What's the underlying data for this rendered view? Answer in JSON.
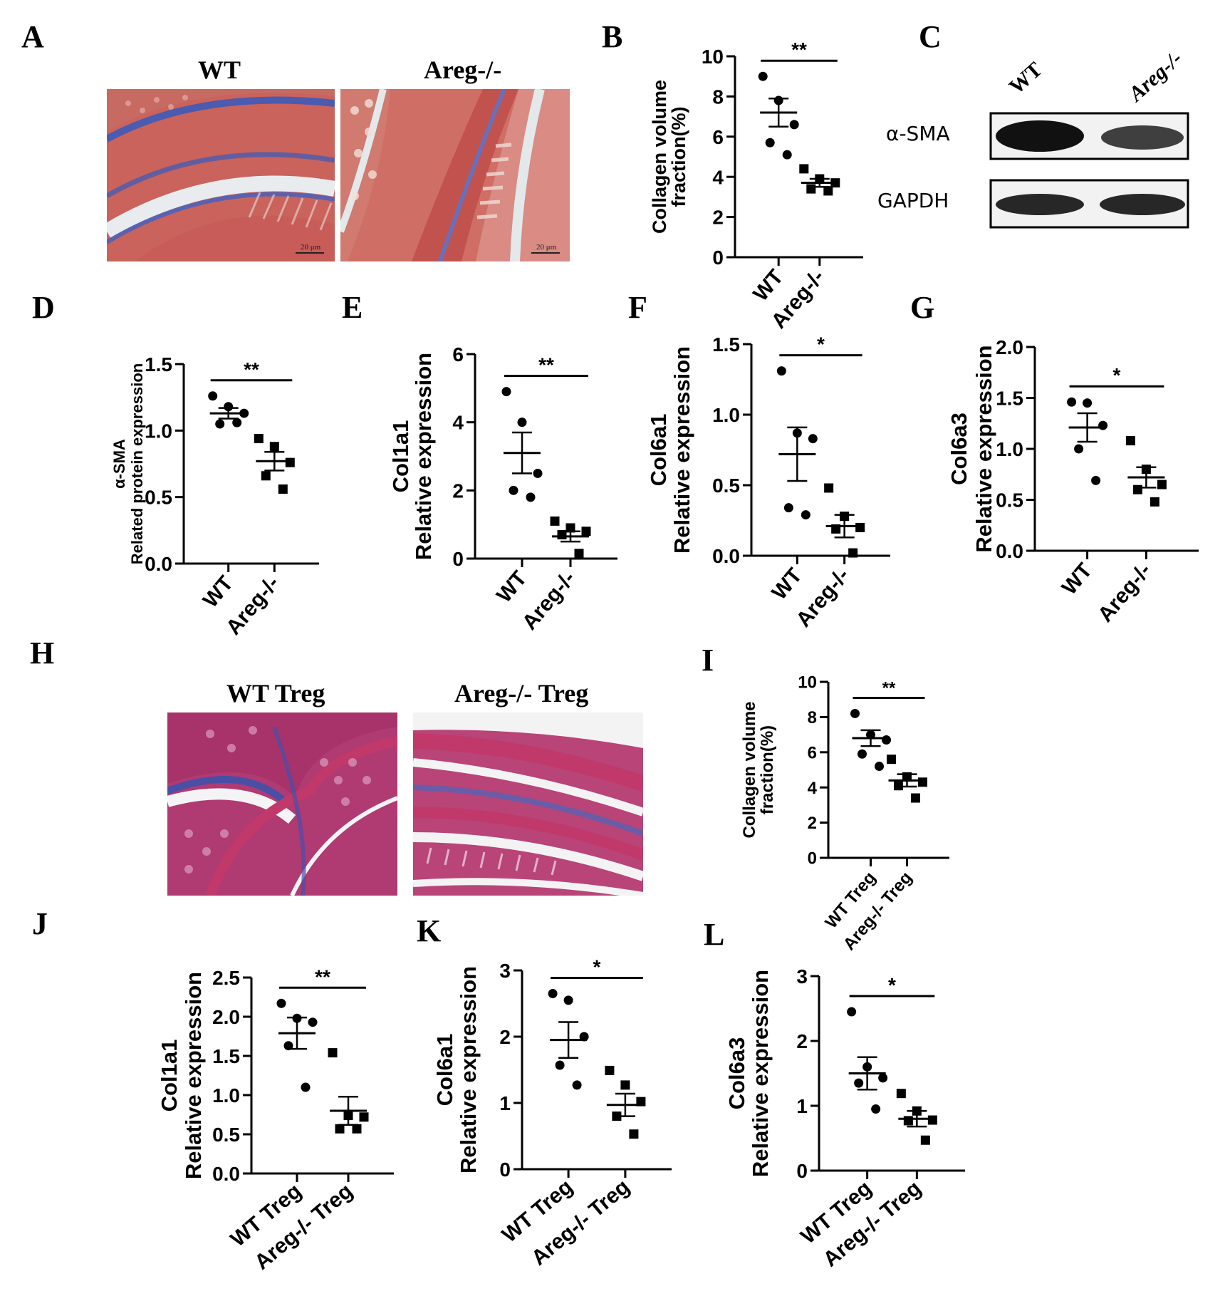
{
  "panels": {
    "A": "A",
    "B": "B",
    "C": "C",
    "D": "D",
    "E": "E",
    "F": "F",
    "G": "G",
    "H": "H",
    "I": "I",
    "J": "J",
    "K": "K",
    "L": "L"
  },
  "panel_a": {
    "left_title": "WT",
    "right_title": "Areg-/-",
    "scale_text": "20 μm"
  },
  "panel_c": {
    "col_wt": "WT",
    "col_ko": "Areg-/-",
    "row1": "α-SMA",
    "row2": "GAPDH",
    "band_intensity": {
      "alpha_sma": [
        1.0,
        0.8
      ],
      "gapdh": [
        0.9,
        0.9
      ]
    }
  },
  "panel_h": {
    "left_title": "WT Treg",
    "right_title": "Areg-/- Treg"
  },
  "colors": {
    "ink": "#000000",
    "tissue_red": "#c45a52",
    "collagen_blue": "#4a5bb0",
    "tissue_magenta": "#a8336a"
  },
  "chart_data": [
    {
      "panel": "B",
      "type": "scatter",
      "ylabel": [
        "Collagen volume",
        "fraction(%)"
      ],
      "categories": [
        "WT",
        "Areg-/-"
      ],
      "yticks": [
        "0",
        "2",
        "4",
        "6",
        "8",
        "10"
      ],
      "ylim": [
        0,
        10
      ],
      "series": [
        {
          "values": [
            9.0,
            7.8,
            6.6,
            5.7,
            5.1
          ],
          "mean": 7.2,
          "sem": 0.7
        },
        {
          "values": [
            4.4,
            3.9,
            3.7,
            3.4,
            3.3
          ],
          "mean": 3.7,
          "sem": 0.2
        }
      ],
      "significance": "**"
    },
    {
      "panel": "D",
      "type": "scatter",
      "ylabel": [
        "α-SMA",
        "Related protein expression"
      ],
      "categories": [
        "WT",
        "Areg-/-"
      ],
      "yticks": [
        "0.0",
        "0.5",
        "1.0",
        "1.5"
      ],
      "ylim": [
        0,
        1.5
      ],
      "series": [
        {
          "values": [
            1.26,
            1.18,
            1.13,
            1.05,
            1.06
          ],
          "mean": 1.13,
          "sem": 0.04
        },
        {
          "values": [
            0.94,
            0.88,
            0.76,
            0.66,
            0.56
          ],
          "mean": 0.77,
          "sem": 0.07
        }
      ],
      "significance": "**"
    },
    {
      "panel": "E",
      "type": "scatter",
      "ylabel": [
        "Col1a1",
        "Relative expression"
      ],
      "categories": [
        "WT",
        "Areg-/-"
      ],
      "yticks": [
        "0",
        "2",
        "4",
        "6"
      ],
      "ylim": [
        0,
        6
      ],
      "series": [
        {
          "values": [
            4.9,
            4.0,
            2.5,
            2.0,
            1.8
          ],
          "mean": 3.1,
          "sem": 0.6
        },
        {
          "values": [
            1.1,
            0.9,
            0.8,
            0.7,
            0.15
          ],
          "mean": 0.65,
          "sem": 0.15
        }
      ],
      "significance": "**"
    },
    {
      "panel": "F",
      "type": "scatter",
      "ylabel": [
        "Col6a1",
        "Relative expression"
      ],
      "categories": [
        "WT",
        "Areg-/-"
      ],
      "yticks": [
        "0.0",
        "0.5",
        "1.0",
        "1.5"
      ],
      "ylim": [
        0,
        1.5
      ],
      "series": [
        {
          "values": [
            1.31,
            0.87,
            0.83,
            0.34,
            0.29
          ],
          "mean": 0.72,
          "sem": 0.19
        },
        {
          "values": [
            0.48,
            0.28,
            0.2,
            0.19,
            0.02
          ],
          "mean": 0.21,
          "sem": 0.08
        }
      ],
      "significance": "*"
    },
    {
      "panel": "G",
      "type": "scatter",
      "ylabel": [
        "Col6a3",
        "Relative expression"
      ],
      "categories": [
        "WT",
        "Areg-/-"
      ],
      "yticks": [
        "0.0",
        "0.5",
        "1.0",
        "1.5",
        "2.0"
      ],
      "ylim": [
        0,
        2.0
      ],
      "series": [
        {
          "values": [
            1.46,
            1.45,
            1.23,
            1.0,
            0.69
          ],
          "mean": 1.21,
          "sem": 0.14
        },
        {
          "values": [
            1.08,
            0.8,
            0.65,
            0.6,
            0.48
          ],
          "mean": 0.72,
          "sem": 0.1
        }
      ],
      "significance": "*"
    },
    {
      "panel": "I",
      "type": "scatter",
      "ylabel": [
        "Collagen volume",
        "fraction(%)"
      ],
      "categories": [
        "WT Treg",
        "Areg-/- Treg"
      ],
      "yticks": [
        "0",
        "2",
        "4",
        "6",
        "8",
        "10"
      ],
      "ylim": [
        0,
        10
      ],
      "series": [
        {
          "values": [
            8.2,
            7.0,
            6.7,
            5.9,
            5.2
          ],
          "mean": 6.8,
          "sem": 0.45
        },
        {
          "values": [
            5.6,
            4.6,
            4.3,
            4.1,
            3.4
          ],
          "mean": 4.4,
          "sem": 0.35
        }
      ],
      "significance": "**"
    },
    {
      "panel": "J",
      "type": "scatter",
      "ylabel": [
        "Col1a1",
        "Relative expression"
      ],
      "categories": [
        "WT Treg",
        "Areg-/- Treg"
      ],
      "yticks": [
        "0.0",
        "0.5",
        "1.0",
        "1.5",
        "2.0",
        "2.5"
      ],
      "ylim": [
        0,
        2.5
      ],
      "series": [
        {
          "values": [
            2.17,
            1.98,
            1.93,
            1.63,
            1.1
          ],
          "mean": 1.79,
          "sem": 0.2
        },
        {
          "values": [
            1.54,
            0.74,
            0.72,
            0.57,
            0.57
          ],
          "mean": 0.8,
          "sem": 0.18
        }
      ],
      "significance": "**"
    },
    {
      "panel": "K",
      "type": "scatter",
      "ylabel": [
        "Col6a1",
        "Relative expression"
      ],
      "categories": [
        "WT Treg",
        "Areg-/- Treg"
      ],
      "yticks": [
        "0",
        "1",
        "2",
        "3"
      ],
      "ylim": [
        0,
        3
      ],
      "series": [
        {
          "values": [
            2.65,
            2.55,
            2.0,
            1.57,
            1.27
          ],
          "mean": 1.95,
          "sem": 0.27
        },
        {
          "values": [
            1.49,
            1.27,
            1.02,
            0.8,
            0.53
          ],
          "mean": 0.97,
          "sem": 0.17
        }
      ],
      "significance": "*"
    },
    {
      "panel": "L",
      "type": "scatter",
      "ylabel": [
        "Col6a3",
        "Relative expression"
      ],
      "categories": [
        "WT Treg",
        "Areg-/- Treg"
      ],
      "yticks": [
        "0",
        "1",
        "2",
        "3"
      ],
      "ylim": [
        0,
        3
      ],
      "series": [
        {
          "values": [
            2.45,
            1.6,
            1.43,
            1.35,
            0.95
          ],
          "mean": 1.5,
          "sem": 0.25
        },
        {
          "values": [
            1.19,
            0.92,
            0.78,
            0.77,
            0.47
          ],
          "mean": 0.8,
          "sem": 0.12
        }
      ],
      "significance": "*"
    }
  ]
}
